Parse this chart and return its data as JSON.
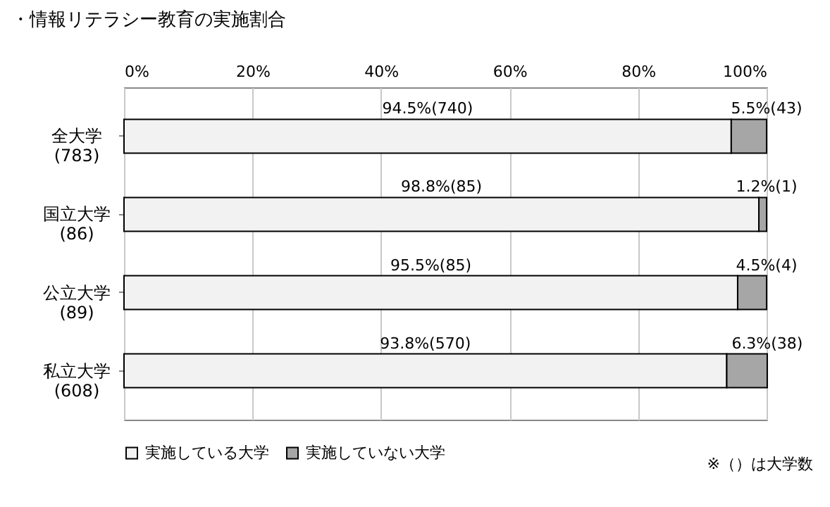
{
  "chart_data": {
    "type": "bar",
    "orientation": "horizontal",
    "stacked": true,
    "title": "・情報リテラシー教育の実施割合",
    "categories": [
      "全大学\n(783)",
      "国立大学\n(86)",
      "公立大学\n(89)",
      "私立大学\n(608)"
    ],
    "series": [
      {
        "name": "実施している大学",
        "color": "#f2f2f2",
        "values": [
          94.5,
          98.8,
          95.5,
          93.8
        ],
        "value_labels": [
          "94.5%(740)",
          "98.8%(85)",
          "95.5%(85)",
          "93.8%(570)"
        ]
      },
      {
        "name": "実施していない大学",
        "color": "#a6a6a6",
        "values": [
          5.5,
          1.2,
          4.5,
          6.3
        ],
        "value_labels": [
          "5.5%(43)",
          "1.2%(1)",
          "4.5%(4)",
          "6.3%(38)"
        ]
      }
    ],
    "xlim": [
      0,
      100
    ],
    "xticks": [
      {
        "value": 0,
        "label": "0%"
      },
      {
        "value": 20,
        "label": "20%"
      },
      {
        "value": 40,
        "label": "40%"
      },
      {
        "value": 60,
        "label": "60%"
      },
      {
        "value": 80,
        "label": "80%"
      },
      {
        "value": 100,
        "label": "100%"
      }
    ],
    "grid": "x",
    "legend": "bottom",
    "annotations": [
      "※（）は大学数"
    ]
  }
}
